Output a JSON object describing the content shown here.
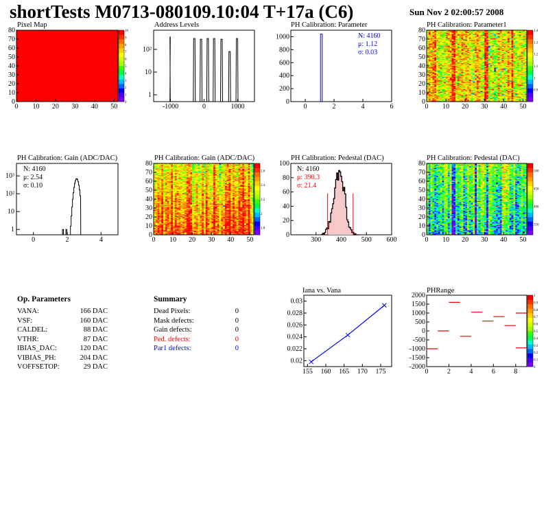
{
  "header": {
    "title": "shortTests M0713-080109.10:04 T+17a (C6)",
    "date": "Sun Nov  2 02:00:57 2008"
  },
  "colors": {
    "red": "#ff0000",
    "blue": "#0000ff",
    "black": "#000000",
    "palette": [
      "#7d00ff",
      "#4b00ff",
      "#0000ff",
      "#0066ff",
      "#00bbff",
      "#00ffc0",
      "#00ff40",
      "#40ff00",
      "#a0ff00",
      "#d0ff00",
      "#ffff00",
      "#ffd000",
      "#ffa000",
      "#ff7000",
      "#ff3000",
      "#ff0000"
    ]
  },
  "panels": {
    "pixel_map": {
      "title": "Pixel Map"
    },
    "address_levels": {
      "title": "Address Levels"
    },
    "ph_param": {
      "title": "PH Calibration: Parameter",
      "stats": [
        "N: 4160",
        "μ: 1.12",
        "σ: 0.03"
      ]
    },
    "ph_param1": {
      "title": "PH Calibration: Parameter1"
    },
    "gain_hist": {
      "title": "PH Calibration: Gain (ADC/DAC)",
      "stats": [
        "N: 4160",
        "μ: 2.54",
        "σ: 0.10"
      ]
    },
    "gain_map": {
      "title": "PH Calibration: Gain (ADC/DAC)"
    },
    "ped_hist": {
      "title": "PH Calibration: Pedestal (DAC)",
      "stats": [
        "N: 4160",
        "μ: 390.3",
        "σ: 21.4"
      ]
    },
    "ped_map": {
      "title": "PH Calibration: Pedestal (DAC)"
    },
    "iana": {
      "title": "Iana vs. Vana"
    },
    "phrange": {
      "title": "PHRange"
    }
  },
  "op_parameters": {
    "heading": "Op. Parameters",
    "rows": [
      {
        "name": "VANA:",
        "value": "166 DAC"
      },
      {
        "name": "VSF:",
        "value": "160 DAC"
      },
      {
        "name": "CALDEL:",
        "value": "88 DAC"
      },
      {
        "name": "VTHR:",
        "value": "87 DAC"
      },
      {
        "name": "IBIAS_DAC:",
        "value": "120 DAC"
      },
      {
        "name": "VIBIAS_PH:",
        "value": "204 DAC"
      },
      {
        "name": "VOFFSETOP:",
        "value": "29 DAC"
      }
    ]
  },
  "summary": {
    "heading": "Summary",
    "rows": [
      {
        "name": "Dead Pixels:",
        "value": "0",
        "color": "#000000"
      },
      {
        "name": "Mask defects:",
        "value": "0",
        "color": "#000000"
      },
      {
        "name": "Gain defects:",
        "value": "0",
        "color": "#000000"
      },
      {
        "name": "Ped. defects:",
        "value": "0",
        "color": "#ff0000"
      },
      {
        "name": "Par1 defects:",
        "value": "0",
        "color": "#0000ff"
      }
    ]
  },
  "chart_data": [
    {
      "id": "pixel_map",
      "type": "heatmap",
      "title": "Pixel Map",
      "xlim": [
        0,
        52
      ],
      "ylim": [
        0,
        80
      ],
      "xticks": [
        "0",
        "10",
        "20",
        "30",
        "40",
        "50"
      ],
      "yticks": [
        "0",
        "10",
        "20",
        "30",
        "40",
        "50",
        "60",
        "70",
        "80"
      ],
      "zlim": [
        0,
        10
      ],
      "zticks": [
        "0",
        "1",
        "2",
        "3",
        "4",
        "5",
        "6",
        "7",
        "8",
        "9",
        "10"
      ],
      "uniform_value": 10
    },
    {
      "id": "address_levels",
      "type": "bar",
      "title": "Address Levels",
      "xlim": [
        -1500,
        1500
      ],
      "xticks": [
        "-1000",
        "0",
        "1000"
      ],
      "ylog": true,
      "yticks": [
        "1",
        "10",
        "10^2"
      ],
      "peaks": [
        {
          "x": -1010,
          "height": 350,
          "width": 10
        },
        {
          "x": -290,
          "height": 300,
          "width": 60
        },
        {
          "x": -90,
          "height": 280,
          "width": 60
        },
        {
          "x": 110,
          "height": 300,
          "width": 60
        },
        {
          "x": 300,
          "height": 300,
          "width": 60
        },
        {
          "x": 520,
          "height": 280,
          "width": 60
        },
        {
          "x": 760,
          "height": 80,
          "width": 60
        },
        {
          "x": 980,
          "height": 300,
          "width": 60
        }
      ]
    },
    {
      "id": "ph_param",
      "type": "bar",
      "title": "PH Calibration: Parameter",
      "xlim": [
        -1,
        6
      ],
      "ylim": [
        0,
        1100
      ],
      "xticks": [
        "0",
        "2",
        "4",
        "6"
      ],
      "yticks": [
        "0",
        "200",
        "400",
        "600",
        "800",
        "1000"
      ],
      "mean": 1.12,
      "sigma": 0.03,
      "n": 4160,
      "peak": 1040
    },
    {
      "id": "ph_param1",
      "type": "heatmap",
      "title": "PH Calibration: Parameter1",
      "xlim": [
        0,
        52
      ],
      "ylim": [
        0,
        80
      ],
      "xticks": [
        "0",
        "10",
        "20",
        "30",
        "40",
        "50"
      ],
      "yticks": [
        "0",
        "10",
        "20",
        "30",
        "40",
        "50",
        "60",
        "70",
        "80"
      ],
      "zlim": [
        0.8,
        1.4
      ],
      "zticks": [
        "0.9",
        "1",
        "1.1",
        "1.2",
        "1.3",
        "1.4"
      ],
      "typical_value": 1.2,
      "spread": 0.08
    },
    {
      "id": "gain_hist",
      "type": "bar",
      "title": "PH Calibration: Gain (ADC/DAC)",
      "xlim": [
        -1,
        5
      ],
      "ylog": true,
      "xticks": [
        "0",
        "2",
        "4"
      ],
      "yticks": [
        "1",
        "10",
        "10^2",
        "10^3"
      ],
      "mean": 2.54,
      "sigma": 0.1,
      "n": 4160,
      "peak": 700,
      "outliers": [
        {
          "x": 1.75,
          "height": 1
        },
        {
          "x": 1.95,
          "height": 1
        }
      ]
    },
    {
      "id": "gain_map",
      "type": "heatmap",
      "title": "PH Calibration: Gain (ADC/DAC)",
      "xlim": [
        0,
        52
      ],
      "ylim": [
        0,
        80
      ],
      "xticks": [
        "0",
        "10",
        "20",
        "30",
        "40",
        "50"
      ],
      "yticks": [
        "0",
        "10",
        "20",
        "30",
        "40",
        "50",
        "60",
        "70",
        "80"
      ],
      "zlim": [
        1.7,
        2.7
      ],
      "zticks": [
        "1.8",
        "2",
        "2.2",
        "2.4",
        "2.6"
      ],
      "typical_value": 2.54,
      "spread": 0.1
    },
    {
      "id": "ped_hist",
      "type": "bar",
      "title": "PH Calibration: Pedestal (DAC)",
      "xlim": [
        200,
        600
      ],
      "ylim": [
        0,
        100
      ],
      "xticks": [
        "300",
        "400",
        "500",
        "600"
      ],
      "yticks": [
        "0",
        "20",
        "40",
        "60",
        "80",
        "100"
      ],
      "mean": 390.3,
      "sigma": 21.4,
      "n": 4160,
      "peak": 90,
      "cut_lines": [
        346,
        447
      ]
    },
    {
      "id": "ped_map",
      "type": "heatmap",
      "title": "PH Calibration: Pedestal (DAC)",
      "xlim": [
        0,
        52
      ],
      "ylim": [
        0,
        80
      ],
      "xticks": [
        "0",
        "10",
        "20",
        "30",
        "40",
        "50"
      ],
      "yticks": [
        "0",
        "10",
        "20",
        "30",
        "40",
        "50",
        "60",
        "70",
        "80"
      ],
      "zlim": [
        320,
        520
      ],
      "zticks": [
        "350",
        "400",
        "450",
        "500"
      ],
      "typical_value": 390,
      "spread": 21
    },
    {
      "id": "iana",
      "type": "line",
      "title": "Iana vs. Vana",
      "xlim": [
        154,
        178
      ],
      "ylim": [
        0.019,
        0.031
      ],
      "xticks": [
        "155",
        "160",
        "165",
        "170",
        "175"
      ],
      "yticks": [
        "0.02",
        "0.022",
        "0.024",
        "0.026",
        "0.028",
        "0.03"
      ],
      "x": [
        156,
        166,
        176
      ],
      "y": [
        0.0198,
        0.0243,
        0.0293
      ]
    },
    {
      "id": "phrange",
      "type": "scatter",
      "title": "PHRange",
      "xlim": [
        0,
        9
      ],
      "ylim": [
        -2000,
        2000
      ],
      "xticks": [
        "0",
        "2",
        "4",
        "6",
        "8"
      ],
      "yticks": [
        "-2000",
        "-1500",
        "-1000",
        "-500",
        "0",
        "500",
        "1000",
        "1500",
        "2000"
      ],
      "zticks": [
        "0",
        "0.1",
        "0.2",
        "0.3",
        "0.4",
        "0.5",
        "0.6",
        "0.7",
        "0.8",
        "0.9",
        "1"
      ],
      "segments": [
        {
          "x0": 0,
          "x1": 1,
          "y": -1000
        },
        {
          "x0": 1,
          "x1": 2,
          "y": 0
        },
        {
          "x0": 2,
          "x1": 3,
          "y": 1600
        },
        {
          "x0": 3,
          "x1": 4,
          "y": -300
        },
        {
          "x0": 4,
          "x1": 5,
          "y": 1050
        },
        {
          "x0": 5,
          "x1": 6,
          "y": 550
        },
        {
          "x0": 6,
          "x1": 7,
          "y": 800
        },
        {
          "x0": 7,
          "x1": 8,
          "y": 300
        },
        {
          "x0": 8,
          "x1": 9,
          "y": 1000
        },
        {
          "x0": 8,
          "x1": 9,
          "y": -950
        }
      ]
    }
  ]
}
